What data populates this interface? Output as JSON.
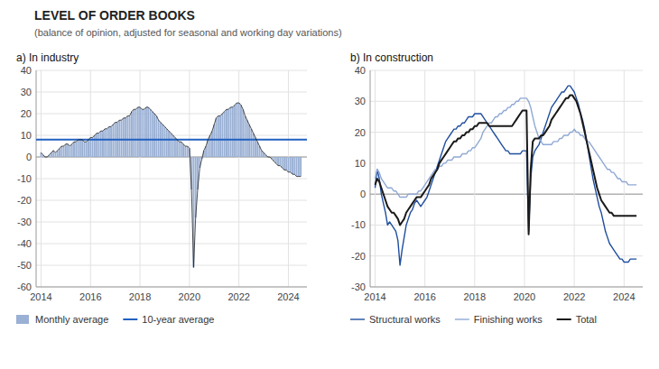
{
  "title": "LEVEL OF ORDER BOOKS",
  "subtitle": "(balance of opinion, adjusted for seasonal and working day variations)",
  "chart_data": [
    {
      "type": "bar",
      "title": "a)  In industry",
      "x": [
        2014.0,
        2014.083,
        2014.167,
        2014.25,
        2014.333,
        2014.417,
        2014.5,
        2014.583,
        2014.667,
        2014.75,
        2014.833,
        2014.917,
        2015.0,
        2015.083,
        2015.167,
        2015.25,
        2015.333,
        2015.417,
        2015.5,
        2015.583,
        2015.667,
        2015.75,
        2015.833,
        2015.917,
        2016.0,
        2016.083,
        2016.167,
        2016.25,
        2016.333,
        2016.417,
        2016.5,
        2016.583,
        2016.667,
        2016.75,
        2016.833,
        2016.917,
        2017.0,
        2017.083,
        2017.167,
        2017.25,
        2017.333,
        2017.417,
        2017.5,
        2017.583,
        2017.667,
        2017.75,
        2017.833,
        2017.917,
        2018.0,
        2018.083,
        2018.167,
        2018.25,
        2018.333,
        2018.417,
        2018.5,
        2018.583,
        2018.667,
        2018.75,
        2018.833,
        2018.917,
        2019.0,
        2019.083,
        2019.167,
        2019.25,
        2019.333,
        2019.417,
        2019.5,
        2019.583,
        2019.667,
        2019.75,
        2019.833,
        2019.917,
        2020.0,
        2020.083,
        2020.167,
        2020.25,
        2020.333,
        2020.417,
        2020.5,
        2020.583,
        2020.667,
        2020.75,
        2020.833,
        2020.917,
        2021.0,
        2021.083,
        2021.167,
        2021.25,
        2021.333,
        2021.417,
        2021.5,
        2021.583,
        2021.667,
        2021.75,
        2021.833,
        2021.917,
        2022.0,
        2022.083,
        2022.167,
        2022.25,
        2022.333,
        2022.417,
        2022.5,
        2022.583,
        2022.667,
        2022.75,
        2022.833,
        2022.917,
        2023.0,
        2023.083,
        2023.167,
        2023.25,
        2023.333,
        2023.417,
        2023.5,
        2023.583,
        2023.667,
        2023.75,
        2023.833,
        2023.917,
        2024.0,
        2024.083,
        2024.167,
        2024.25,
        2024.333,
        2024.417,
        2024.5
      ],
      "series": [
        {
          "name": "Monthly average",
          "type": "bar",
          "color": "#9ab0d4",
          "values": [
            2,
            1,
            0,
            0,
            1,
            2,
            3,
            2,
            3,
            4,
            5,
            5,
            6,
            6,
            5,
            6,
            7,
            7,
            8,
            8,
            8,
            7,
            7,
            8,
            9,
            9,
            10,
            11,
            11,
            12,
            12,
            13,
            13,
            14,
            14,
            15,
            16,
            16,
            17,
            17,
            18,
            18,
            19,
            19,
            21,
            22,
            22,
            23,
            23,
            22,
            22,
            23,
            23,
            22,
            21,
            20,
            19,
            17,
            16,
            15,
            14,
            13,
            12,
            11,
            10,
            9,
            8,
            7,
            7,
            6,
            5,
            5,
            4,
            -15,
            -51,
            -28,
            -15,
            -5,
            -1,
            3,
            5,
            8,
            10,
            12,
            15,
            18,
            19,
            19,
            20,
            21,
            22,
            22,
            23,
            23,
            24,
            25,
            25,
            24,
            22,
            19,
            17,
            15,
            13,
            11,
            9,
            7,
            5,
            3,
            2,
            1,
            0,
            0,
            -1,
            -2,
            -3,
            -4,
            -4,
            -5,
            -6,
            -6,
            -7,
            -7,
            -8,
            -8,
            -9,
            -9,
            -9
          ]
        }
      ],
      "reference_line": {
        "name": "10-year average",
        "value": 8,
        "color": "#2060c0"
      },
      "xlim": [
        2013.8,
        2024.75
      ],
      "xticks": [
        2014,
        2016,
        2018,
        2020,
        2022,
        2024
      ],
      "ylim": [
        -60,
        40
      ],
      "yticks": [
        -60,
        -50,
        -40,
        -30,
        -20,
        -10,
        0,
        10,
        20,
        30,
        40
      ],
      "grid": true,
      "legend": "bottom"
    },
    {
      "type": "line",
      "title": "b)  In construction",
      "x": [
        2014.0,
        2014.083,
        2014.167,
        2014.25,
        2014.333,
        2014.417,
        2014.5,
        2014.583,
        2014.667,
        2014.75,
        2014.833,
        2014.917,
        2015.0,
        2015.083,
        2015.167,
        2015.25,
        2015.333,
        2015.417,
        2015.5,
        2015.583,
        2015.667,
        2015.75,
        2015.833,
        2015.917,
        2016.0,
        2016.083,
        2016.167,
        2016.25,
        2016.333,
        2016.417,
        2016.5,
        2016.583,
        2016.667,
        2016.75,
        2016.833,
        2016.917,
        2017.0,
        2017.083,
        2017.167,
        2017.25,
        2017.333,
        2017.417,
        2017.5,
        2017.583,
        2017.667,
        2017.75,
        2017.833,
        2017.917,
        2018.0,
        2018.083,
        2018.167,
        2018.25,
        2018.333,
        2018.417,
        2018.5,
        2018.583,
        2018.667,
        2018.75,
        2018.833,
        2018.917,
        2019.0,
        2019.083,
        2019.167,
        2019.25,
        2019.333,
        2019.417,
        2019.5,
        2019.583,
        2019.667,
        2019.75,
        2019.833,
        2019.917,
        2020.0,
        2020.083,
        2020.167,
        2020.25,
        2020.333,
        2020.417,
        2020.5,
        2020.583,
        2020.667,
        2020.75,
        2020.833,
        2020.917,
        2021.0,
        2021.083,
        2021.167,
        2021.25,
        2021.333,
        2021.417,
        2021.5,
        2021.583,
        2021.667,
        2021.75,
        2021.833,
        2021.917,
        2022.0,
        2022.083,
        2022.167,
        2022.25,
        2022.333,
        2022.417,
        2022.5,
        2022.583,
        2022.667,
        2022.75,
        2022.833,
        2022.917,
        2023.0,
        2023.083,
        2023.167,
        2023.25,
        2023.333,
        2023.417,
        2023.5,
        2023.583,
        2023.667,
        2023.75,
        2023.833,
        2023.917,
        2024.0,
        2024.083,
        2024.167,
        2024.25,
        2024.333,
        2024.417,
        2024.5
      ],
      "series": [
        {
          "name": "Structural works",
          "color": "#1f4e9e",
          "values": [
            2,
            8,
            5,
            0,
            -3,
            -6,
            -10,
            -9,
            -10,
            -11,
            -12,
            -15,
            -23,
            -18,
            -14,
            -10,
            -8,
            -6,
            -5,
            -3,
            -2,
            -3,
            -4,
            -3,
            -2,
            -1,
            1,
            3,
            5,
            7,
            9,
            11,
            13,
            15,
            17,
            18,
            19,
            20,
            21,
            21,
            22,
            22,
            23,
            23,
            24,
            25,
            25,
            25,
            26,
            26,
            26,
            26,
            25,
            24,
            23,
            22,
            21,
            20,
            19,
            18,
            17,
            16,
            15,
            14,
            14,
            13,
            13,
            13,
            13,
            13,
            13,
            14,
            14,
            14,
            -12,
            5,
            12,
            14,
            15,
            16,
            18,
            20,
            22,
            24,
            26,
            28,
            29,
            30,
            31,
            32,
            33,
            33,
            34,
            35,
            35,
            34,
            33,
            31,
            29,
            26,
            24,
            21,
            17,
            13,
            9,
            5,
            2,
            -1,
            -4,
            -6,
            -9,
            -12,
            -14,
            -16,
            -17,
            -18,
            -19,
            -20,
            -21,
            -21,
            -22,
            -22,
            -22,
            -21,
            -21,
            -21,
            -21
          ]
        },
        {
          "name": "Finishing works",
          "color": "#8fa8d4",
          "values": [
            5,
            8,
            7,
            5,
            4,
            3,
            2,
            2,
            2,
            1,
            1,
            0,
            -1,
            -1,
            -1,
            -1,
            0,
            0,
            0,
            0,
            0,
            1,
            1,
            2,
            3,
            4,
            5,
            6,
            7,
            8,
            8,
            9,
            9,
            10,
            10,
            11,
            11,
            11,
            12,
            12,
            12,
            12,
            13,
            13,
            13,
            14,
            14,
            15,
            15,
            16,
            17,
            18,
            20,
            21,
            22,
            23,
            23,
            24,
            25,
            25,
            26,
            26,
            27,
            27,
            28,
            28,
            29,
            29,
            30,
            30,
            31,
            31,
            31,
            31,
            30,
            28,
            25,
            22,
            20,
            18,
            17,
            16,
            16,
            16,
            16,
            16,
            17,
            17,
            17,
            18,
            18,
            19,
            19,
            19,
            20,
            20,
            21,
            20,
            20,
            19,
            19,
            18,
            17,
            17,
            16,
            15,
            14,
            13,
            12,
            11,
            10,
            9,
            8,
            8,
            7,
            7,
            6,
            5,
            5,
            4,
            4,
            4,
            3,
            3,
            3,
            3,
            3
          ]
        },
        {
          "name": "Total",
          "color": "#1a1a1a",
          "values": [
            3,
            5,
            4,
            2,
            0,
            -2,
            -4,
            -5,
            -6,
            -6,
            -7,
            -8,
            -10,
            -9,
            -8,
            -6,
            -5,
            -4,
            -3,
            -2,
            -1,
            -1,
            -1,
            0,
            1,
            2,
            3,
            5,
            6,
            7,
            8,
            10,
            11,
            12,
            13,
            14,
            15,
            16,
            17,
            17,
            18,
            18,
            19,
            19,
            20,
            20,
            21,
            21,
            22,
            22,
            23,
            23,
            23,
            23,
            23,
            22,
            22,
            22,
            22,
            22,
            22,
            22,
            22,
            22,
            22,
            22,
            22,
            23,
            24,
            25,
            26,
            27,
            27,
            27,
            -13,
            8,
            17,
            18,
            18,
            18,
            19,
            19,
            20,
            21,
            22,
            24,
            25,
            26,
            27,
            28,
            29,
            30,
            31,
            31,
            32,
            32,
            31,
            30,
            28,
            26,
            23,
            20,
            17,
            14,
            11,
            8,
            5,
            2,
            0,
            -2,
            -3,
            -4,
            -5,
            -6,
            -6,
            -7,
            -7,
            -7,
            -7,
            -7,
            -7,
            -7,
            -7,
            -7,
            -7,
            -7,
            -7
          ]
        }
      ],
      "xlim": [
        2013.8,
        2024.75
      ],
      "xticks": [
        2014,
        2016,
        2018,
        2020,
        2022,
        2024
      ],
      "ylim": [
        -30,
        40
      ],
      "yticks": [
        -30,
        -20,
        -10,
        0,
        10,
        20,
        30,
        40
      ],
      "grid": true,
      "legend": "bottom"
    }
  ]
}
